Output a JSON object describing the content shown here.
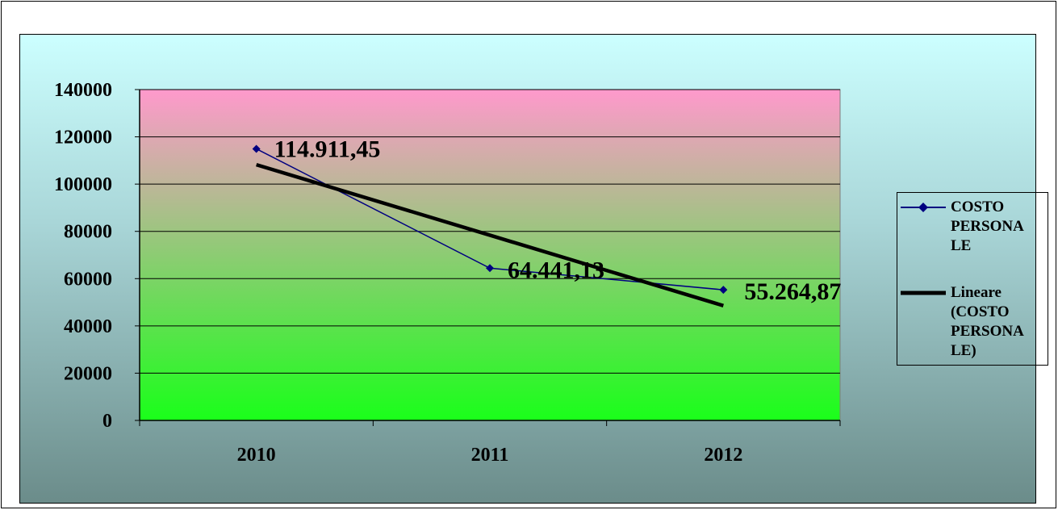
{
  "chart_data": {
    "type": "line",
    "categories": [
      "2010",
      "2011",
      "2012"
    ],
    "series": [
      {
        "name": "COSTO PERSONALE",
        "values": [
          114911.45,
          64441.13,
          55264.87
        ],
        "data_labels": [
          "114.911,45",
          "64.441,13",
          "55.264,87"
        ],
        "color": "#000080",
        "marker": "diamond"
      },
      {
        "name": "Lineare (COSTO PERSONALE)",
        "values": [
          108203.87,
          78380.16,
          48556.45
        ],
        "color": "#000000",
        "kind": "linear-trendline"
      }
    ],
    "ylim": [
      0,
      140000
    ],
    "yticks": [
      "0",
      "20000",
      "40000",
      "60000",
      "80000",
      "100000",
      "120000",
      "140000"
    ],
    "grid": true,
    "legend_position": "right",
    "colors": {
      "plot_top": "#ff99cc",
      "plot_bottom": "#1aff1a",
      "background_top": "#ccffff",
      "background_bottom": "#6b8c8a"
    }
  },
  "legend": {
    "items": [
      {
        "label_lines": [
          "COSTO",
          "PERSONA",
          "LE"
        ]
      },
      {
        "label_lines": [
          "Lineare",
          "(COSTO",
          "PERSONA",
          "LE)"
        ]
      }
    ]
  }
}
